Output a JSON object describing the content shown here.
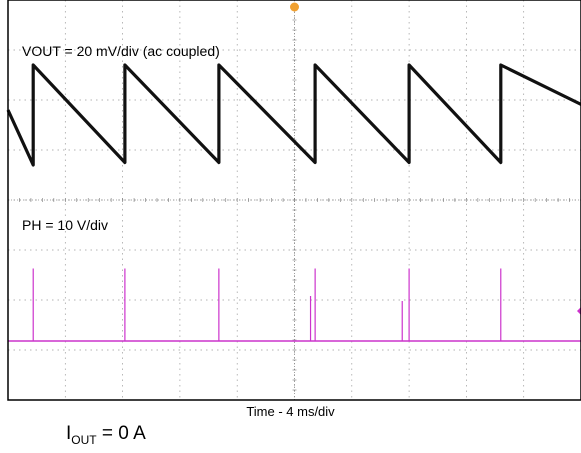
{
  "chart_data": {
    "type": "line",
    "time_label": "Time - 4 ms/div",
    "grid": true,
    "divisions": {
      "x": 10,
      "y": 8
    },
    "channels": [
      {
        "name": "VOUT = 20 mV/div (ac coupled)",
        "unit": "mV",
        "color": "#111111",
        "x": [
          0,
          0.55,
          0.55,
          2.55,
          2.55,
          4.6,
          4.6,
          6.7,
          6.7,
          8.75,
          8.75,
          10.75,
          10.75,
          12.75,
          12.75
        ],
        "y": [
          0,
          -22,
          18,
          -21,
          18,
          -21,
          18,
          -21,
          18,
          -21,
          18,
          -21,
          18,
          0,
          0
        ]
      },
      {
        "name": "PH = 10 V/div",
        "unit": "V",
        "color": "#cc33cc",
        "baseline": 0,
        "spike_times": [
          0.55,
          2.55,
          4.6,
          6.7,
          6.6,
          8.75,
          8.6,
          10.75
        ],
        "spike_heights": [
          14.5,
          14.5,
          14.5,
          14.5,
          9,
          14.5,
          8,
          14.5
        ]
      }
    ]
  },
  "annotations": {
    "output_current": {
      "symbol": "I",
      "subscript": "OUT",
      "value": "= 0 A"
    }
  }
}
